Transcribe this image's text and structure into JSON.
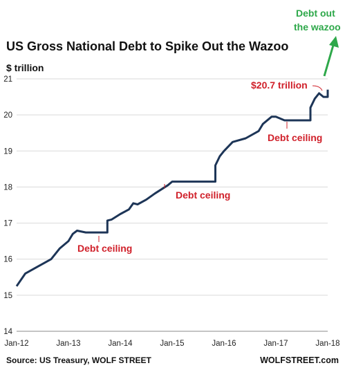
{
  "chart_data": {
    "type": "line",
    "title": "US Gross National Debt to Spike Out the Wazoo",
    "ylabel": "$ trillion",
    "ylim": [
      14,
      21
    ],
    "yticks": [
      "14",
      "15",
      "16",
      "17",
      "18",
      "19",
      "20",
      "21"
    ],
    "xlim": [
      "2012-01",
      "2018-01"
    ],
    "xticks": [
      "Jan-12",
      "Jan-13",
      "Jan-14",
      "Jan-15",
      "Jan-16",
      "Jan-17",
      "Jan-18"
    ],
    "grid": "horizontal",
    "colors": {
      "line": "#1d3557",
      "annotation": "#d0202a",
      "arrow": "#2ea84a",
      "grid": "#d9d9d9"
    },
    "series": [
      {
        "x": [
          "2012-01",
          "2012-03",
          "2012-06",
          "2012-09",
          "2012-11",
          "2013-01",
          "2013-02",
          "2013-03",
          "2013-05",
          "2013-09",
          "2013-10",
          "2013-10",
          "2013-11",
          "2014-01",
          "2014-03",
          "2014-04",
          "2014-05",
          "2014-07",
          "2014-09",
          "2014-12",
          "2015-01",
          "2015-03",
          "2015-06",
          "2015-10",
          "2015-11",
          "2015-11",
          "2015-12",
          "2016-01",
          "2016-03",
          "2016-06",
          "2016-09",
          "2016-10",
          "2016-12",
          "2017-01",
          "2017-03",
          "2017-06",
          "2017-09",
          "2017-09",
          "2017-10",
          "2017-11",
          "2017-12",
          "2018-01",
          "2018-01"
        ],
        "y": [
          15.25,
          15.6,
          15.8,
          16.0,
          16.3,
          16.5,
          16.7,
          16.79,
          16.74,
          16.74,
          16.74,
          17.07,
          17.1,
          17.25,
          17.38,
          17.55,
          17.52,
          17.65,
          17.82,
          18.05,
          18.15,
          18.15,
          18.15,
          18.15,
          18.15,
          18.6,
          18.85,
          19.0,
          19.25,
          19.35,
          19.55,
          19.75,
          19.95,
          19.95,
          19.85,
          19.85,
          19.85,
          20.2,
          20.45,
          20.6,
          20.5,
          20.5,
          20.7
        ]
      }
    ],
    "annotations": [
      {
        "text": "Debt ceiling",
        "x": "2013-06",
        "y": 16.74
      },
      {
        "text": "Debt ceiling",
        "x": "2015-06",
        "y": 18.15
      },
      {
        "text": "Debt ceiling",
        "x": "2017-06",
        "y": 19.85
      },
      {
        "text": "$20.7 trillion",
        "x": "2018-01",
        "y": 20.7
      },
      {
        "text_lines": [
          "Debt out",
          "the wazoo"
        ]
      }
    ],
    "source": "Source: US Treasury, WOLF STREET",
    "brand": "WOLFSTREET.com"
  }
}
